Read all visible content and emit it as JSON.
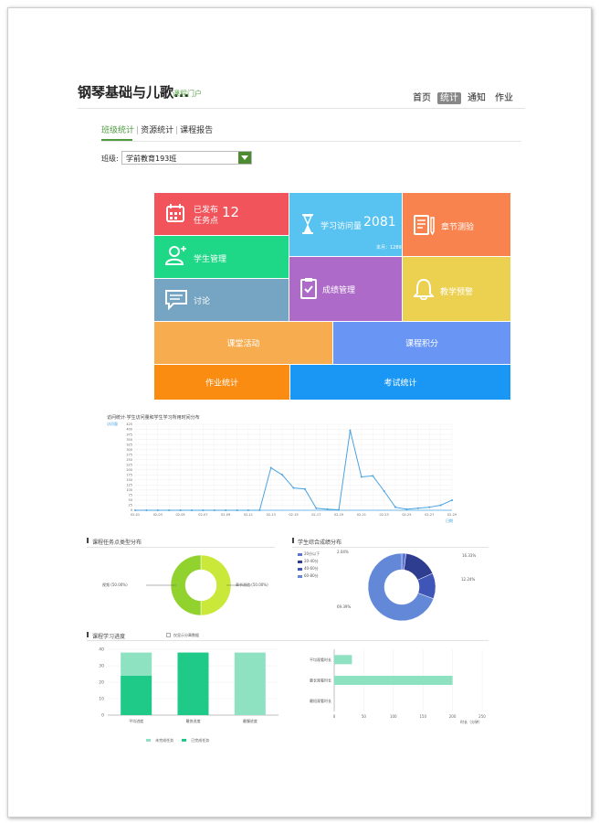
{
  "header": {
    "course_title": "钢琴基础与儿歌...",
    "portal_link": "课程门户",
    "nav": [
      "首页",
      "统计",
      "通知",
      "作业"
    ],
    "nav_active": "统计"
  },
  "tabs": {
    "items": [
      "班级统计",
      "资源统计",
      "课程报告"
    ],
    "active": "班级统计"
  },
  "class_filter": {
    "label": "班级:",
    "value": "学前教育193班"
  },
  "tiles": {
    "published_tasks": {
      "line1": "已发布",
      "line2": "任务点",
      "count": "12",
      "color": "#f2545b"
    },
    "visits": {
      "label": "学习访问量",
      "count": "2081",
      "sub": "本月：1289",
      "color": "#58c3f0"
    },
    "chapter_test": {
      "label": "章节测验",
      "color": "#f8834f"
    },
    "students": {
      "label": "学生管理",
      "color": "#1fd887"
    },
    "grades": {
      "label": "成绩管理",
      "color": "#ad6ac8"
    },
    "warning": {
      "label": "教学预警",
      "color": "#ecd050"
    },
    "discussion": {
      "label": "讨论",
      "color": "#75a5c2"
    },
    "class_activity": {
      "label": "课堂活动",
      "color": "#f7ad4f"
    },
    "course_points": {
      "label": "课程积分",
      "color": "#6996f5"
    },
    "homework_stats": {
      "label": "作业统计",
      "color": "#fa8c12"
    },
    "exam_stats": {
      "label": "考试统计",
      "color": "#1a97f5"
    }
  },
  "line_chart": {
    "title": "访问统计·学生访问量和学生学习所用时间分布",
    "legend": "访问量",
    "x_unit": "日期",
    "x_ticks": [
      "02-01",
      "02-03",
      "02-05",
      "02-07",
      "02-09",
      "02-11",
      "02-13",
      "02-15",
      "02-17",
      "02-19",
      "02-21",
      "02-23",
      "02-25",
      "02-27",
      "02-29"
    ],
    "y_ticks": [
      "0",
      "25",
      "50",
      "75",
      "100",
      "125",
      "150",
      "175",
      "200",
      "225",
      "250",
      "275",
      "300",
      "325",
      "350",
      "375",
      "400",
      "425"
    ]
  },
  "task_type": {
    "title": "课程任务点类型分布",
    "labels": [
      "视频 (50.00%)",
      "章节测验 (50.00%)"
    ]
  },
  "score_dist": {
    "title": "学生综合成绩分布",
    "legend": [
      "20分以下",
      "20-40分",
      "40-60分",
      "60-80分"
    ],
    "labels": [
      "2.04%",
      "16.33%",
      "12.24%",
      "69.39%"
    ]
  },
  "progress": {
    "title": "课程学习进度",
    "checkbox_label": "仅显示分章数据",
    "x_labels": [
      "平均进度",
      "最快进度",
      "最慢进度"
    ],
    "y_ticks": [
      "0",
      "10",
      "20",
      "30",
      "40"
    ],
    "legend": [
      "未完成任务",
      "已完成任务"
    ],
    "hbar_labels": [
      "平均观看时长",
      "最长观看时长",
      "最短观看时长"
    ],
    "hbar_ticks": [
      "0",
      "50",
      "100",
      "150",
      "200",
      "250"
    ],
    "hbar_unit": "时长（分钟）"
  },
  "chart_data": [
    {
      "type": "line",
      "x": [
        "02-01",
        "02-02",
        "02-03",
        "02-04",
        "02-05",
        "02-06",
        "02-07",
        "02-08",
        "02-09",
        "02-10",
        "02-11",
        "02-12",
        "02-13",
        "02-14",
        "02-15",
        "02-16",
        "02-17",
        "02-18",
        "02-19",
        "02-20",
        "02-21",
        "02-22",
        "02-23",
        "02-24",
        "02-25",
        "02-26",
        "02-27",
        "02-28",
        "02-29"
      ],
      "series": [
        {
          "name": "访问量",
          "values": [
            0,
            0,
            0,
            0,
            0,
            0,
            0,
            0,
            0,
            0,
            0,
            0,
            210,
            175,
            110,
            105,
            10,
            5,
            2,
            395,
            165,
            170,
            95,
            15,
            5,
            10,
            15,
            25,
            50
          ]
        }
      ],
      "ylim": [
        0,
        425
      ],
      "color": "#4aa3df"
    },
    {
      "type": "pie",
      "labels": [
        "视频",
        "章节测验"
      ],
      "values": [
        50,
        50
      ],
      "colors": [
        "#c9e83a",
        "#92d22e"
      ]
    },
    {
      "type": "pie",
      "labels": [
        "20分以下",
        "20-40分",
        "40-60分",
        "60-80分"
      ],
      "values": [
        2.04,
        16.33,
        12.24,
        69.39
      ],
      "colors": [
        "#5b73d6",
        "#2e3d8f",
        "#3f55b8",
        "#6388d8"
      ]
    },
    {
      "type": "bar",
      "categories": [
        "平均进度",
        "最快进度",
        "最慢进度"
      ],
      "series": [
        {
          "name": "已完成任务",
          "values": [
            24,
            38,
            0
          ]
        },
        {
          "name": "未完成任务",
          "values": [
            14,
            0,
            38
          ]
        }
      ],
      "ylim": [
        0,
        40
      ],
      "colors": [
        "#1fc987",
        "#8ee2c2"
      ]
    },
    {
      "type": "bar",
      "orientation": "horizontal",
      "categories": [
        "平均观看时长",
        "最长观看时长",
        "最短观看时长"
      ],
      "values": [
        30,
        200,
        0
      ],
      "xlim": [
        0,
        250
      ],
      "color": "#8ee2c2"
    }
  ]
}
